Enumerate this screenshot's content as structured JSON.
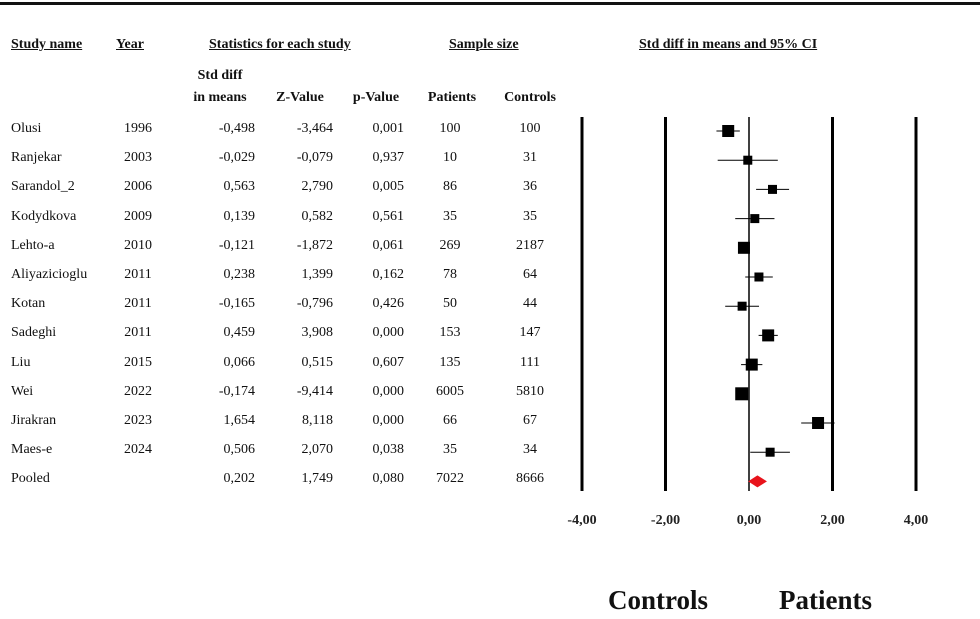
{
  "headers": {
    "study_name": "Study name",
    "year": "Year",
    "statistics": "Statistics for each study",
    "sample_size": "Sample size",
    "ci": "Std diff in means and 95% CI"
  },
  "subheaders": {
    "std_diff_line1": "Std diff",
    "std_diff_line2": "in means",
    "z_value": "Z-Value",
    "p_value": "p-Value",
    "patients": "Patients",
    "controls": "Controls"
  },
  "rows": [
    {
      "study": "Olusi",
      "year": "1996",
      "sdm": "-0,498",
      "z": "-3,464",
      "p": "0,001",
      "patients": "100",
      "controls": "100"
    },
    {
      "study": "Ranjekar",
      "year": "2003",
      "sdm": "-0,029",
      "z": "-0,079",
      "p": "0,937",
      "patients": "10",
      "controls": "31"
    },
    {
      "study": "Sarandol_2",
      "year": "2006",
      "sdm": "0,563",
      "z": "2,790",
      "p": "0,005",
      "patients": "86",
      "controls": "36"
    },
    {
      "study": "Kodydkova",
      "year": "2009",
      "sdm": "0,139",
      "z": "0,582",
      "p": "0,561",
      "patients": "35",
      "controls": "35"
    },
    {
      "study": "Lehto-a",
      "year": "2010",
      "sdm": "-0,121",
      "z": "-1,872",
      "p": "0,061",
      "patients": "269",
      "controls": "2187"
    },
    {
      "study": "Aliyazicioglu",
      "year": "2011",
      "sdm": "0,238",
      "z": "1,399",
      "p": "0,162",
      "patients": "78",
      "controls": "64"
    },
    {
      "study": "Kotan",
      "year": "2011",
      "sdm": "-0,165",
      "z": "-0,796",
      "p": "0,426",
      "patients": "50",
      "controls": "44"
    },
    {
      "study": "Sadeghi",
      "year": "2011",
      "sdm": "0,459",
      "z": "3,908",
      "p": "0,000",
      "patients": "153",
      "controls": "147"
    },
    {
      "study": "Liu",
      "year": "2015",
      "sdm": "0,066",
      "z": "0,515",
      "p": "0,607",
      "patients": "135",
      "controls": "111"
    },
    {
      "study": "Wei",
      "year": "2022",
      "sdm": "-0,174",
      "z": "-9,414",
      "p": "0,000",
      "patients": "6005",
      "controls": "5810"
    },
    {
      "study": "Jirakran",
      "year": "2023",
      "sdm": "1,654",
      "z": "8,118",
      "p": "0,000",
      "patients": "66",
      "controls": "67"
    },
    {
      "study": "Maes-e",
      "year": "2024",
      "sdm": "0,506",
      "z": "2,070",
      "p": "0,038",
      "patients": "35",
      "controls": "34"
    },
    {
      "study": "Pooled",
      "year": "",
      "sdm": "0,202",
      "z": "1,749",
      "p": "0,080",
      "patients": "7022",
      "controls": "8666"
    }
  ],
  "direction_labels": {
    "left": "Controls",
    "right": "Patients"
  },
  "chart_data": {
    "type": "forest",
    "title": "Std diff in means and 95% CI",
    "xlim": [
      -4,
      4
    ],
    "xticks": [
      -4,
      -2,
      0,
      2,
      4
    ],
    "xtick_labels": [
      "-4,00",
      "-2,00",
      "0,00",
      "2,00",
      "4,00"
    ],
    "studies": [
      {
        "name": "Olusi",
        "estimate": -0.498,
        "lower": -0.78,
        "upper": -0.22
      },
      {
        "name": "Ranjekar",
        "estimate": -0.029,
        "lower": -0.75,
        "upper": 0.69
      },
      {
        "name": "Sarandol_2",
        "estimate": 0.563,
        "lower": 0.17,
        "upper": 0.96
      },
      {
        "name": "Kodydkova",
        "estimate": 0.139,
        "lower": -0.33,
        "upper": 0.61
      },
      {
        "name": "Lehto-a",
        "estimate": -0.121,
        "lower": -0.25,
        "upper": 0.01
      },
      {
        "name": "Aliyazicioglu",
        "estimate": 0.238,
        "lower": -0.09,
        "upper": 0.57
      },
      {
        "name": "Kotan",
        "estimate": -0.165,
        "lower": -0.57,
        "upper": 0.24
      },
      {
        "name": "Sadeghi",
        "estimate": 0.459,
        "lower": 0.23,
        "upper": 0.69
      },
      {
        "name": "Liu",
        "estimate": 0.066,
        "lower": -0.19,
        "upper": 0.32
      },
      {
        "name": "Wei",
        "estimate": -0.174,
        "lower": -0.21,
        "upper": -0.14
      },
      {
        "name": "Jirakran",
        "estimate": 1.654,
        "lower": 1.25,
        "upper": 2.05
      },
      {
        "name": "Maes-e",
        "estimate": 0.506,
        "lower": 0.03,
        "upper": 0.98
      }
    ],
    "pooled": {
      "name": "Pooled",
      "estimate": 0.202,
      "lower": -0.02,
      "upper": 0.43
    },
    "marker_sizes": [
      2,
      1,
      1,
      1,
      2,
      1,
      1,
      2,
      2,
      3,
      2,
      1
    ],
    "colors": {
      "study": "#000000",
      "pooled": "#e8131b",
      "axis": "#000000"
    }
  }
}
